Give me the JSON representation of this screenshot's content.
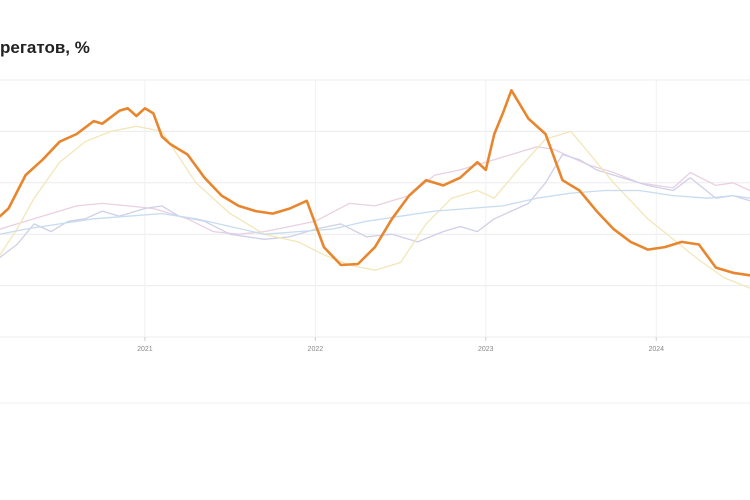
{
  "chart_data": {
    "type": "line",
    "title": "регатов, %",
    "xlabel": "",
    "ylabel": "",
    "x_ticks": [
      "2021",
      "2022",
      "2023",
      "2024"
    ],
    "xlim": [
      2020.15,
      2024.55
    ],
    "ylim": [
      0,
      5
    ],
    "grid": true,
    "legend": "none",
    "series": [
      {
        "color": "#e8862e",
        "x": [
          2020.15,
          2020.2,
          2020.3,
          2020.4,
          2020.5,
          2020.6,
          2020.7,
          2020.75,
          2020.85,
          2020.9,
          2020.95,
          2021.0,
          2021.05,
          2021.1,
          2021.15,
          2021.25,
          2021.35,
          2021.45,
          2021.55,
          2021.65,
          2021.75,
          2021.85,
          2021.95,
          2022.05,
          2022.15,
          2022.25,
          2022.35,
          2022.45,
          2022.55,
          2022.65,
          2022.75,
          2022.85,
          2022.95,
          2023.0,
          2023.05,
          2023.1,
          2023.15,
          2023.25,
          2023.35,
          2023.45,
          2023.55,
          2023.65,
          2023.75,
          2023.85,
          2023.95,
          2024.05,
          2024.15,
          2024.25,
          2024.35,
          2024.45,
          2024.55
        ],
        "values": [
          2.35,
          2.5,
          3.15,
          3.45,
          3.8,
          3.95,
          4.2,
          4.15,
          4.4,
          4.45,
          4.3,
          4.45,
          4.35,
          3.9,
          3.75,
          3.55,
          3.1,
          2.75,
          2.55,
          2.45,
          2.4,
          2.5,
          2.65,
          1.75,
          1.4,
          1.42,
          1.75,
          2.3,
          2.75,
          3.05,
          2.95,
          3.1,
          3.4,
          3.25,
          3.95,
          4.35,
          4.8,
          4.25,
          3.95,
          3.05,
          2.85,
          2.45,
          2.1,
          1.85,
          1.7,
          1.75,
          1.85,
          1.8,
          1.35,
          1.25,
          1.2
        ]
      },
      {
        "color": "#e9d0e2",
        "x": [
          2020.15,
          2020.3,
          2020.45,
          2020.6,
          2020.75,
          2020.9,
          2021.05,
          2021.25,
          2021.4,
          2021.55,
          2021.7,
          2021.85,
          2022.0,
          2022.2,
          2022.35,
          2022.55,
          2022.7,
          2022.85,
          2023.0,
          2023.15,
          2023.3,
          2023.4,
          2023.5,
          2023.6,
          2023.75,
          2023.9,
          2024.0,
          2024.1,
          2024.2,
          2024.35,
          2024.45,
          2024.55
        ],
        "values": [
          2.1,
          2.25,
          2.4,
          2.55,
          2.6,
          2.55,
          2.5,
          2.3,
          2.05,
          2.0,
          2.05,
          2.15,
          2.25,
          2.6,
          2.55,
          2.75,
          3.15,
          3.25,
          3.4,
          3.55,
          3.7,
          3.65,
          3.5,
          3.35,
          3.2,
          3.0,
          2.95,
          2.9,
          3.2,
          2.95,
          3.0,
          2.85
        ]
      },
      {
        "color": "#cfd0e8",
        "x": [
          2020.15,
          2020.25,
          2020.35,
          2020.45,
          2020.55,
          2020.65,
          2020.75,
          2020.85,
          2021.0,
          2021.1,
          2021.2,
          2021.35,
          2021.5,
          2021.7,
          2021.85,
          2022.0,
          2022.15,
          2022.3,
          2022.45,
          2022.6,
          2022.75,
          2022.85,
          2022.95,
          2023.05,
          2023.15,
          2023.25,
          2023.35,
          2023.45,
          2023.55,
          2023.65,
          2023.8,
          2023.95,
          2024.1,
          2024.2,
          2024.35,
          2024.45,
          2024.55
        ],
        "values": [
          1.55,
          1.8,
          2.2,
          2.05,
          2.25,
          2.3,
          2.45,
          2.35,
          2.5,
          2.55,
          2.35,
          2.25,
          2.0,
          1.9,
          1.95,
          2.1,
          2.2,
          1.95,
          2.0,
          1.85,
          2.05,
          2.15,
          2.05,
          2.3,
          2.45,
          2.6,
          3.0,
          3.55,
          3.45,
          3.25,
          3.1,
          2.95,
          2.85,
          3.1,
          2.7,
          2.75,
          2.65
        ]
      },
      {
        "color": "#f3e6b8",
        "x": [
          2020.15,
          2020.25,
          2020.35,
          2020.5,
          2020.65,
          2020.8,
          2020.95,
          2021.1,
          2021.3,
          2021.5,
          2021.7,
          2021.9,
          2022.05,
          2022.2,
          2022.35,
          2022.5,
          2022.65,
          2022.8,
          2022.95,
          2023.05,
          2023.2,
          2023.35,
          2023.5,
          2023.6,
          2023.75,
          2023.95,
          2024.1,
          2024.25,
          2024.4,
          2024.55
        ],
        "values": [
          1.6,
          2.1,
          2.7,
          3.4,
          3.8,
          4.0,
          4.1,
          4.0,
          3.0,
          2.4,
          2.0,
          1.85,
          1.6,
          1.4,
          1.3,
          1.45,
          2.2,
          2.7,
          2.85,
          2.7,
          3.3,
          3.85,
          4.0,
          3.6,
          3.0,
          2.3,
          1.9,
          1.5,
          1.15,
          0.95
        ]
      },
      {
        "color": "#c8dcef",
        "x": [
          2020.15,
          2020.3,
          2020.5,
          2020.7,
          2020.9,
          2021.1,
          2021.3,
          2021.5,
          2021.7,
          2021.9,
          2022.1,
          2022.3,
          2022.5,
          2022.7,
          2022.9,
          2023.1,
          2023.3,
          2023.5,
          2023.7,
          2023.9,
          2024.1,
          2024.3,
          2024.45,
          2024.55
        ],
        "values": [
          2.0,
          2.1,
          2.2,
          2.3,
          2.35,
          2.4,
          2.3,
          2.15,
          2.0,
          2.05,
          2.1,
          2.25,
          2.35,
          2.45,
          2.5,
          2.55,
          2.7,
          2.8,
          2.85,
          2.85,
          2.75,
          2.7,
          2.75,
          2.7
        ]
      }
    ]
  }
}
